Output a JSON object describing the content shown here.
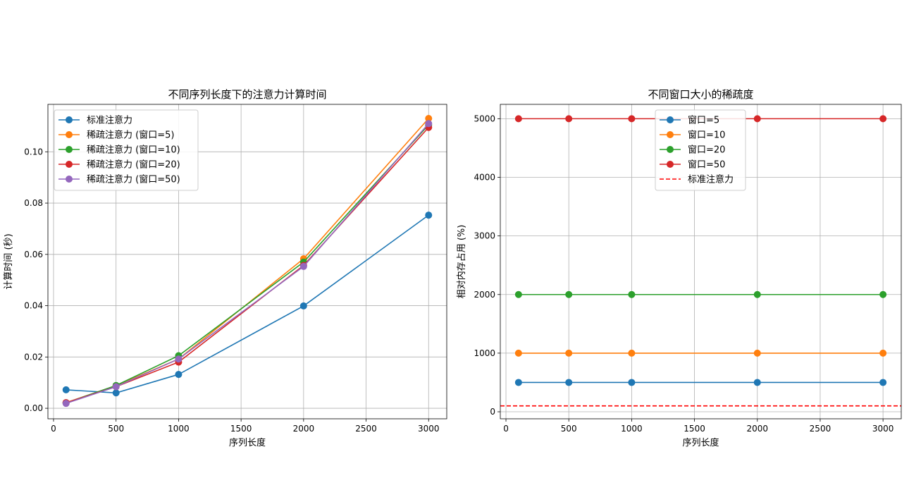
{
  "chart_data": [
    {
      "type": "line",
      "title": "不同序列长度下的注意力计算时间",
      "xlabel": "序列长度",
      "ylabel": "计算时间 (秒)",
      "x": [
        100,
        500,
        1000,
        2000,
        3000
      ],
      "xlim": [
        -45,
        3145
      ],
      "ylim": [
        -0.0041,
        0.1185
      ],
      "xticks": [
        0,
        500,
        1000,
        1500,
        2000,
        2500,
        3000
      ],
      "xtick_labels": [
        "0",
        "500",
        "1000",
        "1500",
        "2000",
        "2500",
        "3000"
      ],
      "yticks": [
        0,
        0.02,
        0.04,
        0.06,
        0.08,
        0.1
      ],
      "ytick_labels": [
        "0.00",
        "0.02",
        "0.04",
        "0.06",
        "0.08",
        "0.10"
      ],
      "grid": true,
      "legend_position": "upper-left",
      "series": [
        {
          "name": "标准注意力",
          "color": "#1f77b4",
          "marker": "circle",
          "values": [
            0.0072,
            0.006,
            0.0132,
            0.0399,
            0.0753
          ]
        },
        {
          "name": "稀疏注意力 (窗口=5)",
          "color": "#ff7f0e",
          "marker": "circle",
          "values": [
            0.0022,
            0.0088,
            0.0192,
            0.0583,
            0.113
          ]
        },
        {
          "name": "稀疏注意力 (窗口=10)",
          "color": "#2ca02c",
          "marker": "circle",
          "values": [
            0.0021,
            0.0089,
            0.0205,
            0.057,
            0.1105
          ]
        },
        {
          "name": "稀疏注意力 (窗口=20)",
          "color": "#d62728",
          "marker": "circle",
          "values": [
            0.0022,
            0.0084,
            0.018,
            0.0557,
            0.1095
          ]
        },
        {
          "name": "稀疏注意力 (窗口=50)",
          "color": "#9467bd",
          "marker": "circle",
          "values": [
            0.0019,
            0.0084,
            0.0192,
            0.0553,
            0.111
          ]
        }
      ]
    },
    {
      "type": "line",
      "title": "不同窗口大小的稀疏度",
      "xlabel": "序列长度",
      "ylabel": "相对内存占用 (%)",
      "x": [
        100,
        500,
        1000,
        2000,
        3000
      ],
      "xlim": [
        -45,
        3145
      ],
      "ylim": [
        -120,
        5245
      ],
      "xticks": [
        0,
        500,
        1000,
        1500,
        2000,
        2500,
        3000
      ],
      "xtick_labels": [
        "0",
        "500",
        "1000",
        "1500",
        "2000",
        "2500",
        "3000"
      ],
      "yticks": [
        0,
        1000,
        2000,
        3000,
        4000,
        5000
      ],
      "ytick_labels": [
        "0",
        "1000",
        "2000",
        "3000",
        "4000",
        "5000"
      ],
      "grid": true,
      "legend_position": "upper-center",
      "series": [
        {
          "name": "窗口=5",
          "color": "#1f77b4",
          "marker": "circle",
          "values": [
            500,
            500,
            500,
            500,
            500
          ]
        },
        {
          "name": "窗口=10",
          "color": "#ff7f0e",
          "marker": "circle",
          "values": [
            1000,
            1000,
            1000,
            1000,
            1000
          ]
        },
        {
          "name": "窗口=20",
          "color": "#2ca02c",
          "marker": "circle",
          "values": [
            2000,
            2000,
            2000,
            2000,
            2000
          ]
        },
        {
          "name": "窗口=50",
          "color": "#d62728",
          "marker": "circle",
          "values": [
            5000,
            5000,
            5000,
            5000,
            5000
          ]
        }
      ],
      "hlines": [
        {
          "name": "标准注意力",
          "color": "#ff0000",
          "style": "dashed",
          "value": 100
        }
      ]
    }
  ]
}
